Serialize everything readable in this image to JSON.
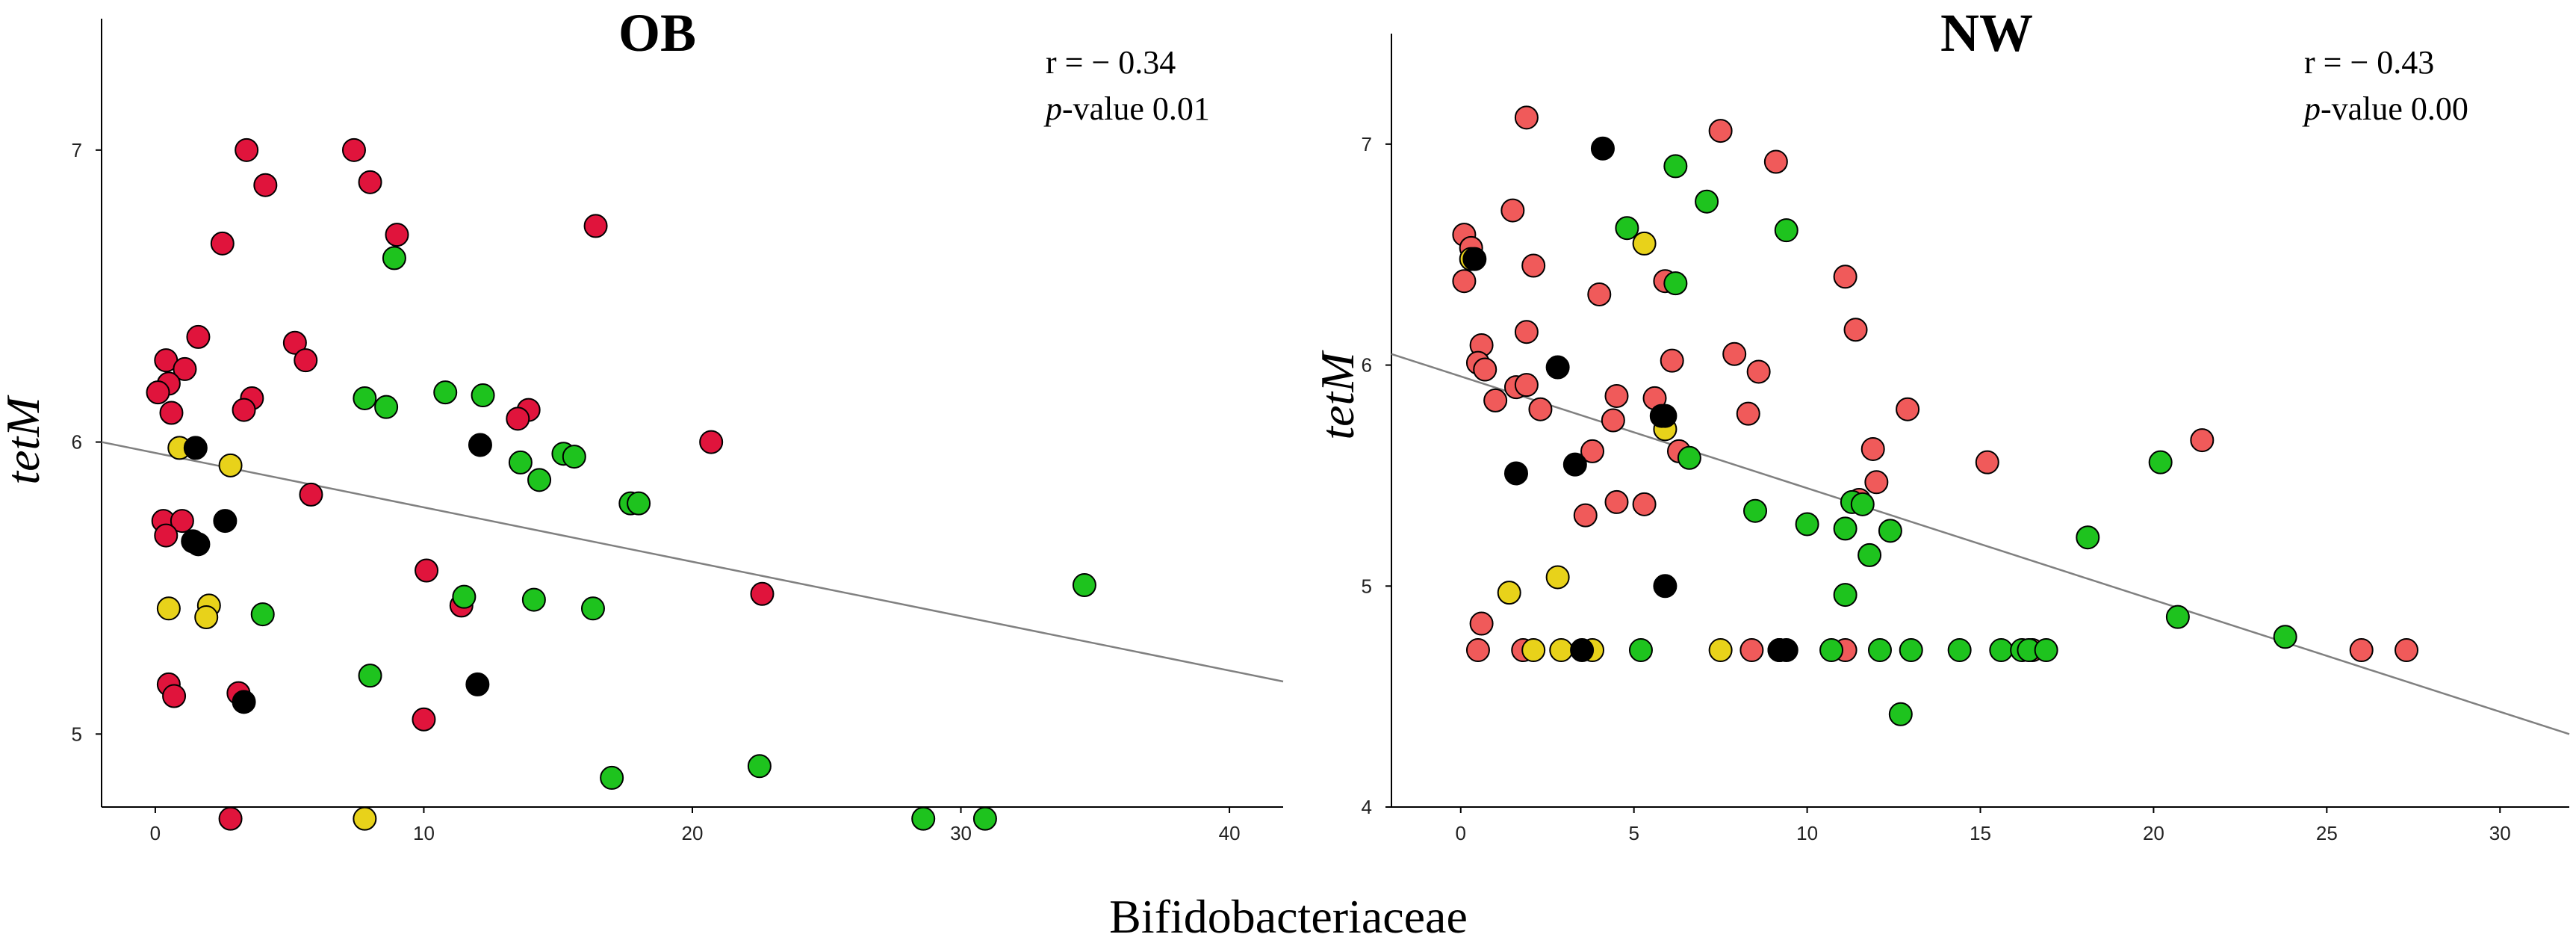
{
  "figure": {
    "shared_xlabel": "Bifidobacteriaceae"
  },
  "colors": {
    "ob_red": "#e0143c",
    "nw_red": "#f05a5a",
    "green": "#1ec31e",
    "yellow": "#e8d21a",
    "black": "#000000",
    "fit_line": "#808080",
    "axis": "#000000"
  },
  "chart_data": [
    {
      "type": "scatter",
      "title": "OB",
      "xlabel": "",
      "ylabel": "tetM",
      "xlim": [
        -2,
        42
      ],
      "ylim": [
        4.75,
        7.45
      ],
      "xticks": [
        0,
        10,
        20,
        30,
        40
      ],
      "yticks": [
        5,
        6,
        7
      ],
      "stats": {
        "r_text": "r = − 0.34",
        "p_label": "p",
        "p_text": "-value  0.01"
      },
      "fit": {
        "x": [
          -2,
          42
        ],
        "y": [
          6.0,
          5.18
        ]
      },
      "series": [
        {
          "name": "red",
          "color_key": "ob_red",
          "points": [
            [
              3.4,
              7.0
            ],
            [
              7.4,
              7.0
            ],
            [
              4.1,
              6.88
            ],
            [
              8.0,
              6.89
            ],
            [
              9.0,
              6.71
            ],
            [
              2.5,
              6.68
            ],
            [
              16.4,
              6.74
            ],
            [
              1.6,
              6.36
            ],
            [
              5.2,
              6.34
            ],
            [
              5.6,
              6.28
            ],
            [
              0.4,
              6.28
            ],
            [
              1.1,
              6.25
            ],
            [
              0.5,
              6.2
            ],
            [
              0.1,
              6.17
            ],
            [
              3.6,
              6.15
            ],
            [
              3.3,
              6.11
            ],
            [
              13.9,
              6.11
            ],
            [
              13.5,
              6.08
            ],
            [
              0.6,
              6.1
            ],
            [
              20.7,
              6.0
            ],
            [
              5.8,
              5.82
            ],
            [
              0.3,
              5.73
            ],
            [
              1.0,
              5.73
            ],
            [
              0.4,
              5.68
            ],
            [
              10.1,
              5.56
            ],
            [
              11.4,
              5.44
            ],
            [
              22.6,
              5.48
            ],
            [
              0.5,
              5.17
            ],
            [
              0.7,
              5.13
            ],
            [
              3.1,
              5.14
            ],
            [
              10.0,
              5.05
            ],
            [
              2.8,
              4.71
            ]
          ]
        },
        {
          "name": "green",
          "color_key": "green",
          "points": [
            [
              8.9,
              6.63
            ],
            [
              7.8,
              6.15
            ],
            [
              8.6,
              6.12
            ],
            [
              10.8,
              6.17
            ],
            [
              12.2,
              6.16
            ],
            [
              15.2,
              5.96
            ],
            [
              15.6,
              5.95
            ],
            [
              13.6,
              5.93
            ],
            [
              14.3,
              5.87
            ],
            [
              17.7,
              5.79
            ],
            [
              18.0,
              5.79
            ],
            [
              11.5,
              5.47
            ],
            [
              14.1,
              5.46
            ],
            [
              16.3,
              5.43
            ],
            [
              4.0,
              5.41
            ],
            [
              8.0,
              5.2
            ],
            [
              34.6,
              5.51
            ],
            [
              22.5,
              4.89
            ],
            [
              17.0,
              4.85
            ],
            [
              28.6,
              4.71
            ],
            [
              30.9,
              4.71
            ]
          ]
        },
        {
          "name": "yellow",
          "color_key": "yellow",
          "points": [
            [
              0.9,
              5.98
            ],
            [
              2.8,
              5.92
            ],
            [
              0.5,
              5.43
            ],
            [
              2.0,
              5.44
            ],
            [
              1.9,
              5.4
            ],
            [
              7.8,
              4.71
            ]
          ]
        },
        {
          "name": "black",
          "color_key": "black",
          "points": [
            [
              1.5,
              5.98
            ],
            [
              12.1,
              5.99
            ],
            [
              2.6,
              5.73
            ],
            [
              1.4,
              5.66
            ],
            [
              1.6,
              5.65
            ],
            [
              12.0,
              5.17
            ],
            [
              3.3,
              5.11
            ]
          ]
        }
      ]
    },
    {
      "type": "scatter",
      "title": "NW",
      "xlabel": "",
      "ylabel": "tetM",
      "xlim": [
        -2,
        32
      ],
      "ylim": [
        4,
        7.5
      ],
      "xticks": [
        0,
        5,
        10,
        15,
        20,
        25,
        30
      ],
      "yticks": [
        4,
        5,
        6,
        7
      ],
      "stats": {
        "r_text": "r = − 0.43",
        "p_label": "p",
        "p_text": "-value  0.00"
      },
      "fit": {
        "x": [
          -2,
          32
        ],
        "y": [
          6.05,
          4.33
        ]
      },
      "series": [
        {
          "name": "red",
          "color_key": "nw_red",
          "points": [
            [
              1.9,
              7.12
            ],
            [
              7.5,
              7.06
            ],
            [
              9.1,
              6.92
            ],
            [
              1.5,
              6.7
            ],
            [
              0.1,
              6.59
            ],
            [
              0.3,
              6.53
            ],
            [
              2.1,
              6.45
            ],
            [
              0.1,
              6.38
            ],
            [
              5.9,
              6.38
            ],
            [
              11.1,
              6.4
            ],
            [
              4.0,
              6.32
            ],
            [
              11.4,
              6.16
            ],
            [
              1.9,
              6.15
            ],
            [
              0.6,
              6.09
            ],
            [
              7.9,
              6.05
            ],
            [
              0.5,
              6.01
            ],
            [
              6.1,
              6.02
            ],
            [
              0.7,
              5.98
            ],
            [
              8.6,
              5.97
            ],
            [
              1.6,
              5.9
            ],
            [
              1.9,
              5.91
            ],
            [
              4.5,
              5.86
            ],
            [
              5.6,
              5.85
            ],
            [
              1.0,
              5.84
            ],
            [
              2.3,
              5.8
            ],
            [
              8.3,
              5.78
            ],
            [
              4.4,
              5.75
            ],
            [
              12.9,
              5.8
            ],
            [
              21.4,
              5.66
            ],
            [
              11.9,
              5.62
            ],
            [
              3.8,
              5.61
            ],
            [
              6.3,
              5.61
            ],
            [
              15.2,
              5.56
            ],
            [
              12.0,
              5.47
            ],
            [
              4.5,
              5.38
            ],
            [
              5.3,
              5.37
            ],
            [
              3.6,
              5.32
            ],
            [
              11.5,
              5.39
            ],
            [
              0.6,
              4.83
            ],
            [
              0.5,
              4.71
            ],
            [
              1.8,
              4.71
            ],
            [
              8.4,
              4.71
            ],
            [
              11.1,
              4.71
            ],
            [
              16.5,
              4.71
            ],
            [
              26.0,
              4.71
            ],
            [
              27.3,
              4.71
            ]
          ]
        },
        {
          "name": "green",
          "color_key": "green",
          "points": [
            [
              6.2,
              6.9
            ],
            [
              7.1,
              6.74
            ],
            [
              4.8,
              6.62
            ],
            [
              9.4,
              6.61
            ],
            [
              6.2,
              6.37
            ],
            [
              20.2,
              5.56
            ],
            [
              6.6,
              5.58
            ],
            [
              8.5,
              5.34
            ],
            [
              11.3,
              5.38
            ],
            [
              11.6,
              5.37
            ],
            [
              10.0,
              5.28
            ],
            [
              11.1,
              5.26
            ],
            [
              12.4,
              5.25
            ],
            [
              11.8,
              5.14
            ],
            [
              18.1,
              5.22
            ],
            [
              11.1,
              4.96
            ],
            [
              20.7,
              4.86
            ],
            [
              23.8,
              4.77
            ],
            [
              5.2,
              4.71
            ],
            [
              9.2,
              4.71
            ],
            [
              10.7,
              4.71
            ],
            [
              12.1,
              4.71
            ],
            [
              13.0,
              4.71
            ],
            [
              14.4,
              4.71
            ],
            [
              15.6,
              4.71
            ],
            [
              16.2,
              4.71
            ],
            [
              16.4,
              4.71
            ],
            [
              16.9,
              4.71
            ],
            [
              12.7,
              4.42
            ]
          ]
        },
        {
          "name": "yellow",
          "color_key": "yellow",
          "points": [
            [
              0.3,
              6.48
            ],
            [
              5.3,
              6.55
            ],
            [
              5.9,
              5.71
            ],
            [
              2.8,
              5.04
            ],
            [
              1.4,
              4.97
            ],
            [
              2.1,
              4.71
            ],
            [
              2.9,
              4.71
            ],
            [
              3.8,
              4.71
            ],
            [
              7.5,
              4.71
            ]
          ]
        },
        {
          "name": "black",
          "color_key": "black",
          "points": [
            [
              4.1,
              6.98
            ],
            [
              0.4,
              6.48
            ],
            [
              2.8,
              5.99
            ],
            [
              5.8,
              5.77
            ],
            [
              5.9,
              5.77
            ],
            [
              1.6,
              5.51
            ],
            [
              3.3,
              5.55
            ],
            [
              5.9,
              5.0
            ],
            [
              3.5,
              4.71
            ],
            [
              9.2,
              4.71
            ],
            [
              9.4,
              4.71
            ]
          ]
        }
      ]
    }
  ]
}
